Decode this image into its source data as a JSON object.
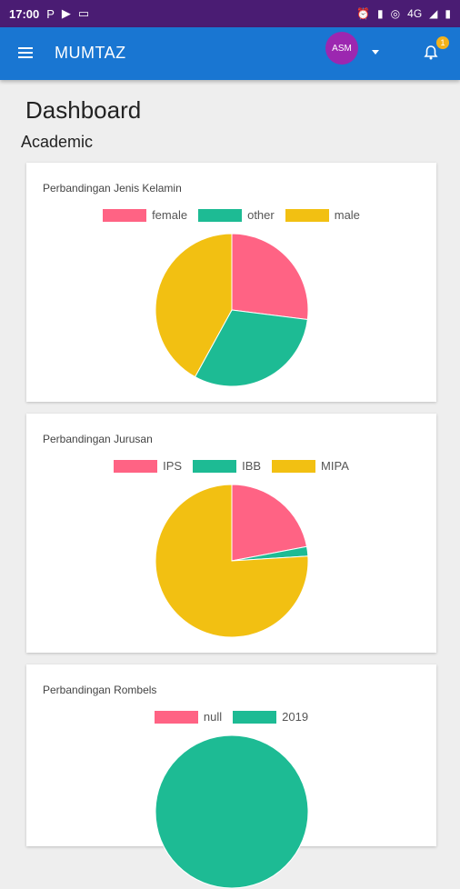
{
  "status": {
    "time": "17:00",
    "network": "4G"
  },
  "appbar": {
    "title": "MUMTAZ",
    "avatar_text": "ASM",
    "notification_count": "1"
  },
  "page": {
    "title": "Dashboard",
    "section": "Academic"
  },
  "colors": {
    "pink": "#ff6384",
    "teal": "#1dbb94",
    "yellow": "#f2c012",
    "appbar": "#1976d2",
    "statusbar": "#4a1c73"
  },
  "chart_data": [
    {
      "type": "pie",
      "title": "Perbandingan Jenis Kelamin",
      "categories": [
        "female",
        "other",
        "male"
      ],
      "values": [
        27,
        31,
        42
      ],
      "colors": [
        "#ff6384",
        "#1dbb94",
        "#f2c012"
      ],
      "legend": "top"
    },
    {
      "type": "pie",
      "title": "Perbandingan Jurusan",
      "categories": [
        "IPS",
        "IBB",
        "MIPA"
      ],
      "values": [
        22,
        2,
        76
      ],
      "colors": [
        "#ff6384",
        "#1dbb94",
        "#f2c012"
      ],
      "legend": "top"
    },
    {
      "type": "pie",
      "title": "Perbandingan Rombels",
      "categories": [
        "null",
        "2019"
      ],
      "values": [
        0,
        100
      ],
      "colors": [
        "#ff6384",
        "#1dbb94"
      ],
      "legend": "top"
    }
  ]
}
